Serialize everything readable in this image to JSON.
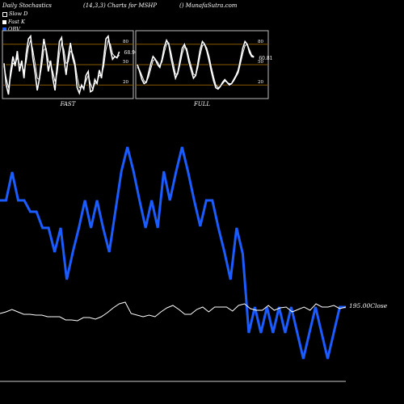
{
  "header": {
    "left": "Daily Stochastics",
    "middle": "(14,3,3) Charts for MSHP",
    "right": "() MunafaSutra.com"
  },
  "legend": [
    {
      "label": "Slow  D",
      "color": "#000000",
      "border": "#ffffff"
    },
    {
      "label": "Fast  K",
      "color": "#ffffff",
      "border": "#ffffff"
    },
    {
      "label": "OBV",
      "color": "#1a5cff",
      "border": "#1a5cff"
    }
  ],
  "chart_data": [
    {
      "type": "line",
      "title": "FAST",
      "value_label": "68.96",
      "y_ticks": [
        80,
        50,
        20
      ],
      "ylim": [
        0,
        100
      ],
      "series": [
        {
          "values": [
            52,
            20,
            6,
            40,
            62,
            48,
            70,
            40,
            56,
            30,
            66,
            88,
            92,
            60,
            38,
            12,
            30,
            60,
            88,
            70,
            40,
            56,
            30,
            12,
            50,
            84,
            90,
            60,
            35,
            62,
            82,
            60,
            48,
            16,
            8,
            20,
            14,
            34,
            40,
            10,
            12,
            28,
            22,
            42,
            30,
            60,
            88,
            92,
            72,
            58,
            62,
            60,
            69
          ]
        },
        {
          "values": [
            48,
            30,
            16,
            32,
            52,
            50,
            60,
            50,
            50,
            40,
            54,
            76,
            86,
            72,
            52,
            30,
            28,
            48,
            72,
            74,
            56,
            50,
            40,
            25,
            38,
            66,
            82,
            72,
            52,
            54,
            70,
            66,
            54,
            32,
            16,
            18,
            16,
            26,
            34,
            22,
            14,
            22,
            24,
            34,
            34,
            48,
            72,
            86,
            80,
            66,
            62,
            60,
            64
          ]
        }
      ]
    },
    {
      "type": "line",
      "title": "FULL",
      "value_label": "60.81",
      "y_ticks": [
        80,
        50,
        20
      ],
      "ylim": [
        0,
        100
      ],
      "series": [
        {
          "values": [
            50,
            40,
            28,
            22,
            24,
            38,
            52,
            62,
            58,
            50,
            46,
            58,
            76,
            86,
            80,
            60,
            44,
            30,
            38,
            56,
            74,
            80,
            70,
            54,
            42,
            30,
            34,
            52,
            72,
            84,
            80,
            70,
            56,
            40,
            26,
            16,
            14,
            18,
            24,
            28,
            24,
            20,
            22,
            28,
            34,
            42,
            58,
            74,
            84,
            80,
            68,
            62,
            61
          ]
        },
        {
          "values": [
            46,
            42,
            34,
            26,
            24,
            32,
            44,
            56,
            58,
            54,
            48,
            54,
            68,
            80,
            82,
            68,
            52,
            36,
            36,
            50,
            66,
            76,
            74,
            60,
            48,
            36,
            34,
            46,
            64,
            78,
            80,
            74,
            62,
            46,
            32,
            20,
            16,
            18,
            22,
            26,
            24,
            22,
            22,
            26,
            32,
            38,
            52,
            66,
            78,
            80,
            72,
            64,
            62
          ]
        }
      ]
    },
    {
      "type": "line",
      "title": "",
      "value_label": "195.00Close",
      "series": [
        {
          "name": "OBV",
          "values": [
            248,
            248,
            213,
            248,
            248,
            262,
            262,
            282,
            282,
            312,
            282,
            346,
            312,
            282,
            248,
            282,
            248,
            282,
            312,
            262,
            212,
            182,
            212,
            248,
            282,
            248,
            282,
            212,
            248,
            213,
            182,
            213,
            248,
            280,
            248,
            248,
            282,
            312,
            346,
            282,
            314,
            412,
            380,
            412,
            380,
            412,
            380,
            412,
            380,
            412,
            444,
            412,
            380,
            412,
            444,
            412,
            380,
            380
          ]
        },
        {
          "values": [
            388,
            386,
            383,
            386,
            389,
            389,
            390,
            390,
            392,
            392,
            392,
            396,
            396,
            397,
            393,
            393,
            395,
            392,
            387,
            381,
            376,
            374,
            388,
            390,
            392,
            390,
            392,
            386,
            381,
            378,
            383,
            389,
            389,
            383,
            380,
            386,
            380,
            380,
            380,
            385,
            378,
            376,
            382,
            384,
            384,
            378,
            384,
            381,
            380,
            386,
            383,
            380,
            384,
            376,
            380,
            380,
            378,
            382,
            380
          ]
        }
      ]
    }
  ]
}
